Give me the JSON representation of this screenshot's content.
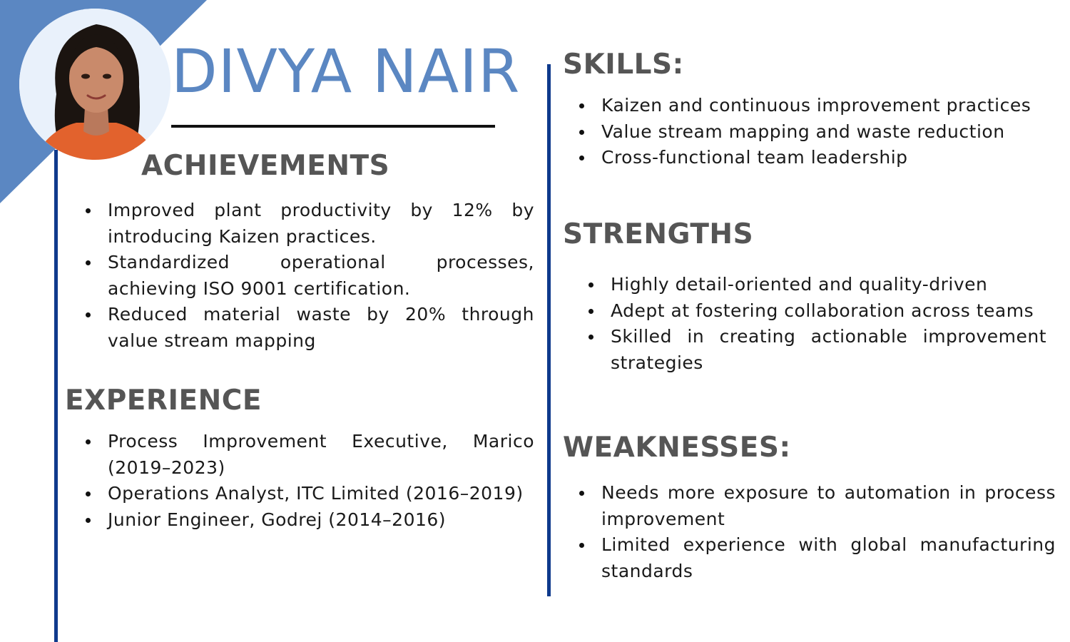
{
  "profile": {
    "name": "DIVYA NAIR"
  },
  "achievements": {
    "heading": "ACHIEVEMENTS",
    "items": [
      "Improved plant productivity by 12% by introducing Kaizen practices.",
      "Standardized operational processes, achieving ISO 9001 certification.",
      "Reduced material waste by 20% through value stream mapping"
    ]
  },
  "experience": {
    "heading": "EXPERIENCE",
    "items": [
      "Process Improvement Executive, Marico (2019–2023)",
      "Operations Analyst, ITC Limited (2016–2019)",
      "Junior Engineer, Godrej (2014–2016)"
    ]
  },
  "skills": {
    "heading": "SKILLS:",
    "items": [
      "Kaizen and continuous improvement practices",
      "Value stream mapping and waste reduction",
      "Cross-functional team leadership"
    ]
  },
  "strengths": {
    "heading": "STRENGTHS",
    "items": [
      "Highly detail-oriented and quality-driven",
      "Adept at fostering collaboration across teams",
      "Skilled in creating actionable improvement strategies"
    ]
  },
  "weaknesses": {
    "heading": "WEAKNESSES:",
    "items": [
      "Needs more exposure to automation in process improvement",
      "Limited experience with global manufacturing standards"
    ]
  },
  "colors": {
    "accent": "#5b87c2",
    "divider": "#0f3a8c",
    "heading": "#555555"
  }
}
